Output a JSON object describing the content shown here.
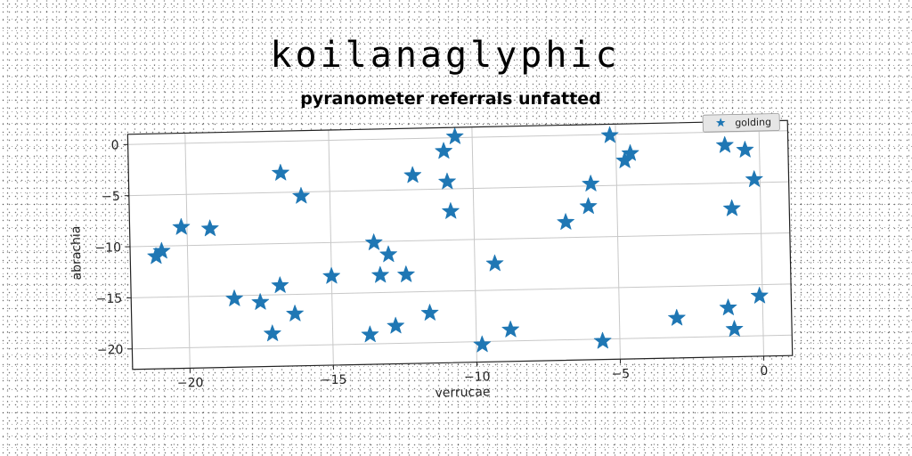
{
  "chart_data": {
    "type": "scatter",
    "title": "koilanaglyphic",
    "subtitle": "pyranometer referrals unfatted",
    "xlabel": "verrucae",
    "ylabel": "abrachia",
    "xlim": [
      -22,
      1
    ],
    "ylim": [
      -22,
      1
    ],
    "xticks": [
      -20,
      -15,
      -10,
      -5,
      0
    ],
    "xtick_labels": [
      "−20",
      "−15",
      "−10",
      "−5",
      "0"
    ],
    "yticks": [
      0,
      -5,
      -10,
      -15,
      -20
    ],
    "ytick_labels": [
      "0",
      "−5",
      "−10",
      "−15",
      "−20"
    ],
    "grid": true,
    "legend_position": "top-right",
    "series": [
      {
        "name": "golding",
        "marker": "star",
        "color": "#1f77b4",
        "points": [
          [
            -21.1,
            -11.0
          ],
          [
            -20.9,
            -10.5
          ],
          [
            -20.2,
            -8.2
          ],
          [
            -19.2,
            -8.4
          ],
          [
            -18.4,
            -15.3
          ],
          [
            -17.5,
            -15.7
          ],
          [
            -17.1,
            -18.8
          ],
          [
            -16.8,
            -14.1
          ],
          [
            -16.7,
            -3.1
          ],
          [
            -16.3,
            -16.9
          ],
          [
            -16.0,
            -5.4
          ],
          [
            -15.0,
            -13.3
          ],
          [
            -13.7,
            -19.1
          ],
          [
            -13.5,
            -10.1
          ],
          [
            -13.3,
            -13.3
          ],
          [
            -13.0,
            -11.3
          ],
          [
            -12.8,
            -18.3
          ],
          [
            -12.4,
            -13.3
          ],
          [
            -12.1,
            -3.6
          ],
          [
            -11.6,
            -17.1
          ],
          [
            -11.0,
            -1.3
          ],
          [
            -10.9,
            -4.3
          ],
          [
            -10.8,
            -7.2
          ],
          [
            -10.6,
            0.1
          ],
          [
            -9.8,
            -20.3
          ],
          [
            -9.3,
            -12.4
          ],
          [
            -8.8,
            -18.9
          ],
          [
            -6.8,
            -8.5
          ],
          [
            -6.0,
            -7.0
          ],
          [
            -5.9,
            -4.8
          ],
          [
            -5.6,
            -20.2
          ],
          [
            -5.2,
            -0.1
          ],
          [
            -4.7,
            -2.6
          ],
          [
            -4.5,
            -1.9
          ],
          [
            -3.0,
            -18.1
          ],
          [
            -1.2,
            -17.2
          ],
          [
            -1.2,
            -1.3
          ],
          [
            -1.0,
            -19.3
          ],
          [
            -1.0,
            -7.5
          ],
          [
            -0.5,
            -1.8
          ],
          [
            -0.2,
            -4.7
          ],
          [
            -0.1,
            -16.1
          ]
        ]
      }
    ]
  }
}
